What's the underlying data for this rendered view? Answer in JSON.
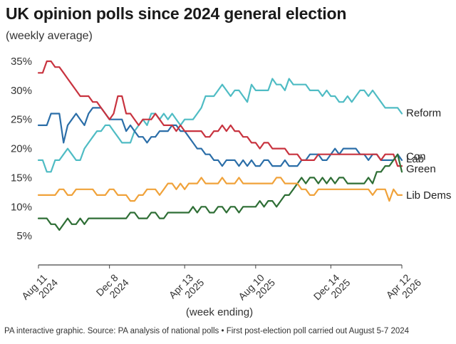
{
  "title": "UK opinion polls since 2024 general election",
  "subtitle": "(weekly average)",
  "footnote": "PA interactive graphic. Source: PA analysis of national polls • First post-election poll carried out August 5-7 2024",
  "chart_data": {
    "type": "line",
    "title": "UK opinion polls since 2024 general election",
    "subtitle": "(weekly average)",
    "xlabel": "(week ending)",
    "ylabel": "",
    "ylim": [
      0,
      35
    ],
    "yticks": [
      "35%",
      "30%",
      "25%",
      "20%",
      "15%",
      "10%",
      "5%"
    ],
    "ytick_values": [
      35,
      30,
      25,
      20,
      15,
      10,
      5
    ],
    "xticks": [
      {
        "line1": "Aug 11",
        "line2": "2024",
        "week": 0
      },
      {
        "line1": "Dec 8",
        "line2": "2024",
        "week": 17
      },
      {
        "line1": "Apr 13",
        "line2": "2025",
        "week": 35
      },
      {
        "line1": "Aug 10",
        "line2": "2025",
        "week": 52
      },
      {
        "line1": "Dec 14",
        "line2": "2025",
        "week": 70
      },
      {
        "line1": "Apr 12",
        "line2": "2026",
        "week": 87
      }
    ],
    "x_unit": "weeks after Aug 11 2024",
    "grid": false,
    "legend": "right-end labels",
    "series": [
      {
        "name": "Reform",
        "color": "#4fbcc4",
        "values": [
          18,
          18,
          16,
          16,
          18,
          18,
          19,
          20,
          19,
          18,
          18,
          20,
          21,
          22,
          23,
          23,
          24,
          24,
          23,
          22,
          21,
          21,
          21,
          23,
          24,
          25,
          24,
          26,
          26,
          25,
          26,
          25,
          26,
          25,
          24,
          25,
          25,
          25,
          26,
          27,
          29,
          29,
          29,
          30,
          31,
          30,
          29,
          30,
          30,
          29,
          28,
          31,
          30,
          30,
          30,
          30,
          32,
          31,
          31,
          30,
          32,
          31,
          31,
          31,
          31,
          30,
          30,
          30,
          29,
          30,
          29,
          29,
          28,
          28,
          29,
          28,
          29,
          30,
          30,
          29,
          30,
          29,
          28,
          27,
          27,
          27,
          27,
          26
        ]
      },
      {
        "name": "Con",
        "color": "#2b6ea8",
        "values": [
          24,
          24,
          24,
          26,
          26,
          26,
          21,
          24,
          25,
          26,
          25,
          24,
          26,
          27,
          27,
          27,
          26,
          25,
          25,
          25,
          25,
          23,
          24,
          23,
          22,
          22,
          21,
          22,
          22,
          23,
          23,
          23,
          24,
          24,
          23,
          23,
          22,
          21,
          20,
          20,
          19,
          19,
          18,
          18,
          17,
          18,
          18,
          18,
          17,
          18,
          17,
          18,
          17,
          17,
          18,
          18,
          17,
          17,
          17,
          18,
          17,
          17,
          17,
          18,
          18,
          19,
          19,
          19,
          18,
          18,
          19,
          20,
          19,
          20,
          20,
          20,
          20,
          19,
          19,
          18,
          19,
          19,
          18,
          18,
          18,
          18,
          19,
          18
        ]
      },
      {
        "name": "Lab",
        "color": "#c8333f",
        "values": [
          33,
          33,
          35,
          35,
          34,
          34,
          33,
          32,
          31,
          30,
          29,
          29,
          29,
          28,
          28,
          27,
          26,
          25,
          26,
          29,
          29,
          26,
          26,
          25,
          24,
          25,
          25,
          25,
          26,
          25,
          24,
          24,
          24,
          23,
          24,
          23,
          23,
          23,
          23,
          23,
          22,
          22,
          23,
          23,
          24,
          23,
          24,
          23,
          23,
          22,
          22,
          21,
          21,
          20,
          21,
          21,
          20,
          20,
          20,
          20,
          19,
          19,
          19,
          18,
          18,
          18,
          18,
          19,
          19,
          19,
          19,
          19,
          19,
          19,
          19,
          19,
          19,
          19,
          19,
          19,
          19,
          19,
          18,
          19,
          19,
          19,
          17,
          17
        ]
      },
      {
        "name": "Green",
        "color": "#2e6e35",
        "values": [
          8,
          8,
          8,
          7,
          7,
          6,
          7,
          8,
          7,
          7,
          8,
          7,
          8,
          8,
          8,
          8,
          8,
          8,
          8,
          8,
          8,
          8,
          9,
          9,
          8,
          8,
          8,
          9,
          9,
          8,
          8,
          9,
          9,
          9,
          9,
          9,
          9,
          10,
          9,
          10,
          10,
          9,
          9,
          10,
          10,
          9,
          10,
          10,
          9,
          10,
          10,
          10,
          10,
          11,
          10,
          11,
          11,
          10,
          11,
          12,
          12,
          13,
          14,
          15,
          14,
          15,
          15,
          14,
          15,
          14,
          15,
          14,
          15,
          15,
          14,
          14,
          14,
          14,
          14,
          15,
          14,
          16,
          16,
          17,
          17,
          18,
          19,
          16
        ]
      },
      {
        "name": "Lib Dems",
        "color": "#f0a23a",
        "values": [
          12,
          12,
          12,
          12,
          12,
          13,
          13,
          12,
          12,
          13,
          13,
          13,
          13,
          13,
          12,
          12,
          12,
          13,
          13,
          12,
          12,
          12,
          11,
          11,
          12,
          12,
          13,
          13,
          13,
          12,
          13,
          14,
          14,
          13,
          14,
          13,
          14,
          14,
          14,
          15,
          14,
          14,
          14,
          14,
          15,
          14,
          14,
          14,
          15,
          14,
          14,
          14,
          14,
          14,
          14,
          14,
          14,
          15,
          15,
          14,
          14,
          14,
          14,
          13,
          13,
          12,
          12,
          13,
          13,
          13,
          13,
          13,
          13,
          13,
          13,
          13,
          13,
          13,
          13,
          13,
          12,
          13,
          13,
          13,
          11,
          13,
          12,
          12
        ]
      }
    ]
  }
}
